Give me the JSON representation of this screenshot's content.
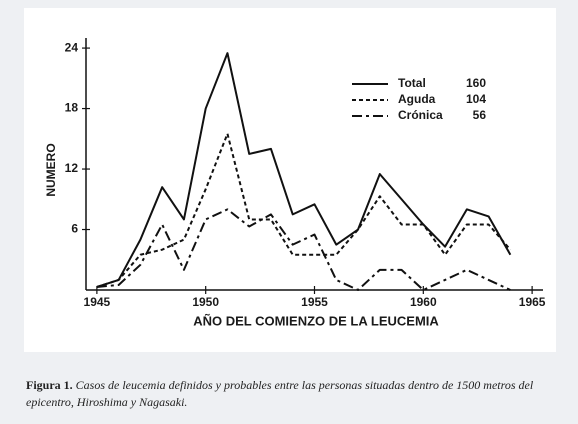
{
  "chart_data": {
    "type": "line",
    "y_label": "NUMERO",
    "x_label": "AÑO DEL COMIENZO DE LA LEUCEMIA",
    "x": [
      1945,
      1946,
      1947,
      1948,
      1949,
      1950,
      1951,
      1952,
      1953,
      1954,
      1955,
      1956,
      1957,
      1958,
      1959,
      1960,
      1961,
      1962,
      1963,
      1964
    ],
    "series": [
      {
        "name": "Total",
        "count": 160,
        "color": "#111111",
        "line_style": "solid",
        "values": [
          0.3,
          1,
          5,
          10.2,
          7,
          18,
          23.5,
          13.5,
          14,
          7.5,
          8.5,
          4.5,
          6,
          11.5,
          9,
          6.5,
          4.3,
          8,
          7.3,
          3.5
        ]
      },
      {
        "name": "Aguda",
        "count": 104,
        "color": "#111111",
        "line_style": "dashed",
        "values": [
          0.3,
          1,
          3.5,
          4,
          5,
          10,
          15.5,
          7,
          7,
          3.5,
          3.5,
          3.5,
          6,
          9.3,
          6.5,
          6.5,
          3.5,
          6.5,
          6.5,
          4
        ]
      },
      {
        "name": "Crónica",
        "count": 56,
        "color": "#111111",
        "line_style": "dashdot",
        "values": [
          0.3,
          0.5,
          2.5,
          6.5,
          2,
          7,
          8,
          6.3,
          7.5,
          4.5,
          5.5,
          1,
          0,
          2,
          2,
          0,
          1,
          2,
          1,
          0
        ]
      }
    ],
    "xlim": [
      1944.5,
      1965.5
    ],
    "xticks": [
      1945,
      1950,
      1955,
      1960,
      1965
    ],
    "ylim": [
      0,
      25
    ],
    "yticks": [
      6,
      12,
      18,
      24
    ],
    "grid": false
  },
  "caption": {
    "label": "Figura 1.",
    "text": "Casos de leucemia definidos y probables entre las personas situadas dentro de 1500 metros del epicentro, Hiroshima y Nagasaki."
  }
}
